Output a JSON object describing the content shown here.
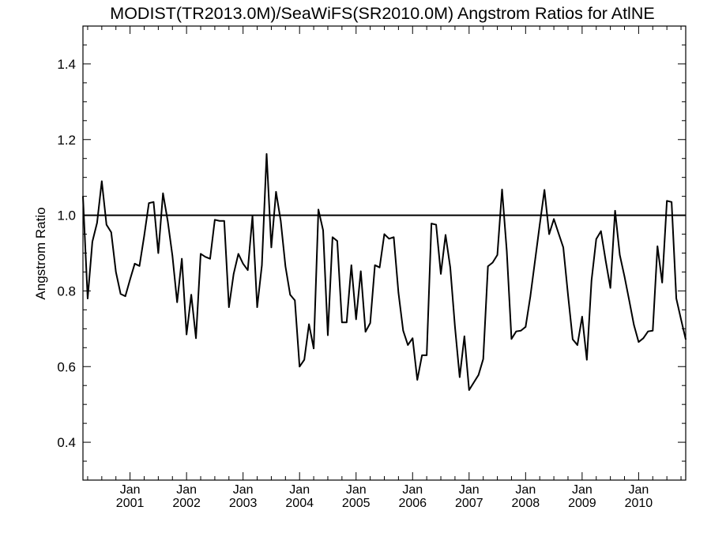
{
  "chart_data": {
    "type": "line",
    "title": "MODIST(TR2013.0M)/SeaWiFS(SR2010.0M)  Angstrom Ratios for AtlNE",
    "xlabel": "",
    "ylabel": "Angstrom Ratio",
    "xlim": [
      2000.1667,
      2010.8333
    ],
    "ylim": [
      0.3,
      1.5
    ],
    "yticks": [
      "0.4",
      "0.6",
      "0.8",
      "1.0",
      "1.2",
      "1.4"
    ],
    "xticks": [
      {
        "at": 2001.0,
        "month": "Jan",
        "year": "2001"
      },
      {
        "at": 2002.0,
        "month": "Jan",
        "year": "2002"
      },
      {
        "at": 2003.0,
        "month": "Jan",
        "year": "2003"
      },
      {
        "at": 2004.0,
        "month": "Jan",
        "year": "2004"
      },
      {
        "at": 2005.0,
        "month": "Jan",
        "year": "2005"
      },
      {
        "at": 2006.0,
        "month": "Jan",
        "year": "2006"
      },
      {
        "at": 2007.0,
        "month": "Jan",
        "year": "2007"
      },
      {
        "at": 2008.0,
        "month": "Jan",
        "year": "2008"
      },
      {
        "at": 2009.0,
        "month": "Jan",
        "year": "2009"
      },
      {
        "at": 2010.0,
        "month": "Jan",
        "year": "2010"
      }
    ],
    "grid": false,
    "reference_line": 1.0,
    "series": [
      {
        "start": "2000-03",
        "values": [
          1.05,
          0.78,
          0.93,
          0.98,
          1.09,
          0.975,
          0.955,
          0.85,
          0.792,
          0.786,
          0.83,
          0.872,
          0.866,
          0.945,
          1.032,
          1.035,
          0.9,
          1.058,
          0.985,
          0.893,
          0.77,
          0.885,
          0.685,
          0.79,
          0.675,
          0.898,
          0.89,
          0.885,
          0.988,
          0.985,
          0.985,
          0.757,
          0.845,
          0.898,
          0.872,
          0.855,
          0.998,
          0.757,
          0.868,
          1.162,
          0.915,
          1.062,
          0.985,
          0.865,
          0.79,
          0.775,
          0.6,
          0.618,
          0.712,
          0.648,
          1.015,
          0.96,
          0.683,
          0.942,
          0.932,
          0.717,
          0.717,
          0.868,
          0.725,
          0.852,
          0.692,
          0.715,
          0.868,
          0.862,
          0.95,
          0.938,
          0.942,
          0.795,
          0.695,
          0.657,
          0.675,
          0.565,
          0.63,
          0.63,
          0.978,
          0.975,
          0.845,
          0.948,
          0.862,
          0.705,
          0.572,
          0.68,
          0.538,
          0.558,
          0.578,
          0.62,
          0.865,
          0.875,
          0.895,
          1.068,
          0.905,
          0.673,
          0.693,
          0.695,
          0.705,
          0.785,
          0.88,
          0.975,
          1.067,
          0.95,
          0.99,
          0.952,
          0.915,
          0.79,
          0.672,
          0.657,
          0.732,
          0.618,
          0.828,
          0.937,
          0.958,
          0.88,
          0.808,
          1.012,
          0.895,
          0.838,
          0.775,
          0.71,
          0.665,
          0.675,
          0.693,
          0.695,
          0.918,
          0.822,
          1.038,
          1.035,
          0.78,
          0.725,
          0.672
        ]
      }
    ]
  }
}
